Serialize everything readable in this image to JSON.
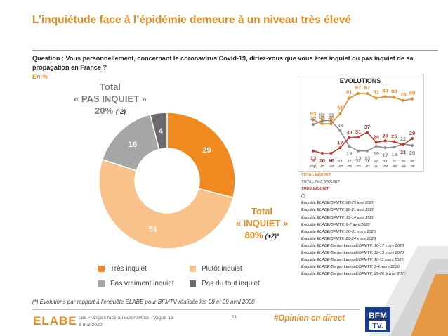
{
  "title": "L’inquiétude face à l’épidémie demeure à un niveau très élevé",
  "question": "Question : Vous personnellement, concernant le coronavirus Covid-19, diriez-vous que vous êtes inquiet ou pas inquiet de sa propagation en France ?",
  "unit": "En %",
  "totals": {
    "pas_inquiet": {
      "label": "Total",
      "label2": "« PAS INQUIET »",
      "value": "20%",
      "delta": "(-2)"
    },
    "inquiet": {
      "label": "Total",
      "label2": "« INQUIET »",
      "value": "80%",
      "delta": "(+2)*"
    }
  },
  "colors": {
    "tres_inquiet": "#F0891F",
    "plutot_inquiet": "#F8C28A",
    "pas_vraiment": "#A6A6A6",
    "pas_du_tout": "#6B6B6B",
    "accent": "#E8891E",
    "red": "#C0392B"
  },
  "chart_data": [
    {
      "type": "pie",
      "donut": true,
      "categories": [
        "Très inquiet",
        "Plutôt inquiet",
        "Pas vraiment inquiet",
        "Pas du tout inquiet"
      ],
      "values": [
        29,
        51,
        16,
        4
      ],
      "labels": [
        "29",
        "51",
        "16",
        "4"
      ],
      "legend": "bottom"
    },
    {
      "type": "line",
      "title": "EVOLUTIONS",
      "x": [
        "26\n-02(*)",
        "4\n-03",
        "11\n-03",
        "13\n-03",
        "17\n-03",
        "24\n-03",
        "31\n-03",
        "07\n-04",
        "14\n-04",
        "21\n-04",
        "29\n-04",
        "05\n-05"
      ],
      "series": [
        {
          "name": "TOTAL INQUIET",
          "color": "#F0891F",
          "values": [
            53,
            48,
            48,
            61,
            81,
            87,
            87,
            81,
            83,
            82,
            78,
            80
          ]
        },
        {
          "name": "TOTAL PAS INQUIET",
          "color": "#8C8C8C",
          "values": [
            47,
            52,
            52,
            39,
            19,
            13,
            13,
            19,
            17,
            18,
            22,
            20
          ]
        },
        {
          "name": "TRES INQUIET",
          "color": "#C0392B",
          "values": [
            13,
            10,
            10,
            17,
            30,
            31,
            37,
            24,
            26,
            25,
            21,
            29
          ]
        }
      ],
      "legend_extra": [
        "(*)"
      ]
    }
  ],
  "enquetes": [
    "Enquête ELABE/BFMTV, 28-29 avril 2020",
    "Enquête ELABE/BFMTV, 20-21 avril 2020",
    "Enquête ELABE/BFMTV, 13-14 avril 2020",
    "Enquête ELABE/BFMTV, 6-7 avril 2020",
    "Enquête ELABE/BFMTV, 30-31 mars 2020",
    "Enquête ELABE/BFMTV, 23-24 mars 2020",
    "Enquête ELABE-Berger Levrault/BFMTV, 16-17 mars 2020",
    "Enquête ELABE-Berger Levrault/BFMTV, 12-13 mars 2020",
    "Enquête ELABE-Berger Levrault/BFMTV, 10-11 mars 2020",
    "Enquête ELABE-Berger Levrault/BFMTV, 3-4 mars 2020",
    "Enquête ELABE-Berger Levrault/BFMTV, 25-26 février 2020"
  ],
  "footnote": "(*) Evolutions par rapport à l’enquête ELABE pour BFMTV réalisée les 28 et 29 avril 2020",
  "footer": {
    "logo": "ELABE",
    "line1": "Les Français face au coronavirus - Vague 12",
    "line2": "6 mai 2020",
    "page": "21",
    "hashtag": "#Opinion en direct",
    "bfm_logo_line1": "BFM",
    "bfm_logo_line2": "TV."
  }
}
